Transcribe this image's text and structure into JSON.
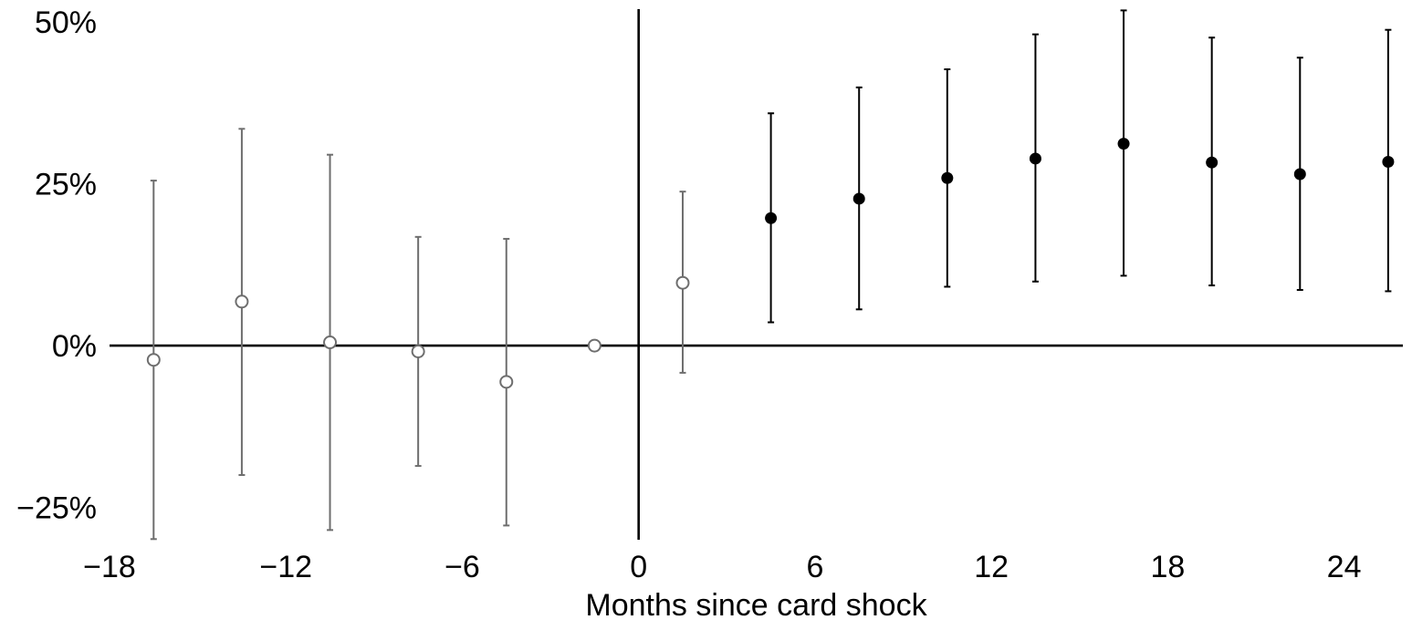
{
  "chart_data": {
    "type": "scatter",
    "xlabel": "Months since card shock",
    "ylabel": "",
    "xlim": [
      -18,
      26
    ],
    "ylim": [
      -30,
      52
    ],
    "x_ticks": [
      -18,
      -12,
      -6,
      0,
      6,
      12,
      18,
      24
    ],
    "x_tick_labels": [
      "−18",
      "−12",
      "−6",
      "0",
      "6",
      "12",
      "18",
      "24"
    ],
    "y_ticks": [
      -25,
      0,
      25,
      50
    ],
    "y_tick_labels": [
      "−25%",
      "0%",
      "25%",
      "50%"
    ],
    "reference_lines": {
      "x": 0,
      "y": 0
    },
    "grid": false,
    "colors": {
      "pre_period": "#6e6e6e",
      "post_period": "#000000",
      "axis": "#000000"
    },
    "series": [
      {
        "marker": "open-circle",
        "x": [
          -16.5,
          -13.5,
          -10.5,
          -7.5,
          -4.5,
          -1.5,
          1.5
        ],
        "y": [
          -2.2,
          6.8,
          0.5,
          -0.9,
          -5.6,
          0.0,
          9.7
        ],
        "lower": [
          -29.9,
          -20.0,
          -28.5,
          -18.6,
          -27.8,
          null,
          -4.2
        ],
        "upper": [
          25.5,
          33.5,
          29.5,
          16.8,
          16.5,
          null,
          23.8
        ]
      },
      {
        "marker": "filled-circle",
        "x": [
          4.5,
          7.5,
          10.5,
          13.5,
          16.5,
          19.5,
          22.5,
          25.5
        ],
        "y": [
          19.7,
          22.7,
          25.9,
          28.9,
          31.2,
          28.3,
          26.5,
          28.4
        ],
        "lower": [
          3.6,
          5.6,
          9.1,
          9.9,
          10.8,
          9.3,
          8.6,
          8.4
        ],
        "upper": [
          35.9,
          39.9,
          42.7,
          48.1,
          51.8,
          47.6,
          44.5,
          48.8
        ]
      }
    ]
  }
}
